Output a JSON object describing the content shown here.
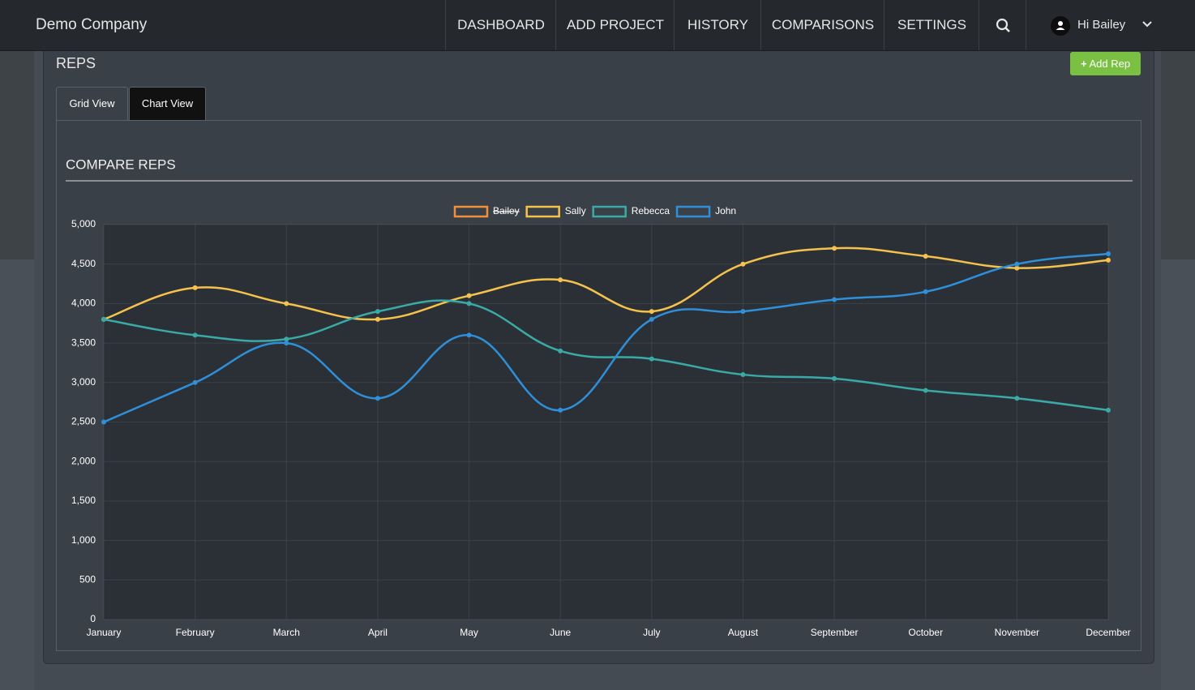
{
  "brand": "Demo Company",
  "nav": [
    "DASHBOARD",
    "ADD PROJECT",
    "HISTORY",
    "COMPARISONS",
    "SETTINGS"
  ],
  "user_greeting": "Hi Bailey",
  "section_title": "REPS",
  "add_button": "Add Rep",
  "tabs": [
    "Grid View",
    "Chart View"
  ],
  "chart_data": {
    "type": "line",
    "title": "COMPARE REPS",
    "categories": [
      "January",
      "February",
      "March",
      "April",
      "May",
      "June",
      "July",
      "August",
      "September",
      "October",
      "November",
      "December"
    ],
    "series": [
      {
        "name": "Bailey",
        "color": "#f0913a",
        "hidden": true
      },
      {
        "name": "Sally",
        "color": "#f5c24c",
        "values": [
          3800,
          4200,
          4000,
          3800,
          4100,
          4300,
          3900,
          4500,
          4700,
          4600,
          4450,
          4550
        ]
      },
      {
        "name": "Rebecca",
        "color": "#3aaaa6",
        "values": [
          3800,
          3600,
          3550,
          3900,
          4000,
          3400,
          3300,
          3100,
          3050,
          2900,
          2800,
          2650
        ]
      },
      {
        "name": "John",
        "color": "#2f8fd8",
        "values": [
          2500,
          3000,
          3500,
          2800,
          3600,
          2650,
          3800,
          3900,
          4050,
          4150,
          4500,
          4630
        ]
      }
    ],
    "ylim": [
      0,
      5000
    ],
    "yticks": [
      0,
      500,
      {
        "value": 1000,
        "label": "1,000"
      },
      {
        "value": 1500,
        "label": "1,500"
      },
      {
        "value": 2000,
        "label": "2,000"
      },
      {
        "value": 2500,
        "label": "2,500"
      },
      {
        "value": 3000,
        "label": "3,000"
      },
      {
        "value": 3500,
        "label": "3,500"
      },
      {
        "value": 4000,
        "label": "4,000"
      },
      {
        "value": 4500,
        "label": "4,500"
      },
      {
        "value": 5000,
        "label": "5,000"
      }
    ],
    "grid": true,
    "legend": "top"
  }
}
